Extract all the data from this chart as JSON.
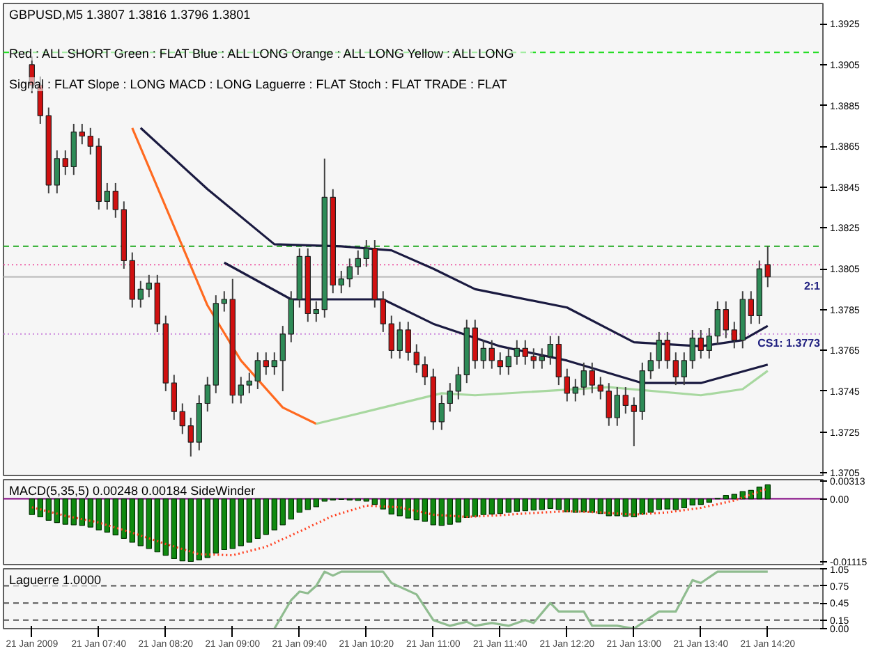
{
  "chart_data": [
    {
      "type": "candlestick",
      "title": "GBPUSD,M5 1.3807 1.3816 1.3796 1.3801",
      "annotations": [
        "Red : ALL SHORT  Green : FLAT  Blue : ALL LONG  Orange : ALL LONG  Yellow : ALL LONG",
        "Signal : FLAT  Slope : LONG  MACD : LONG  Laguerre : FLAT  Stoch : FLAT        TRADE : FLAT"
      ],
      "x": [
        "2009-01-21T07:00",
        "2009-01-21T07:05",
        "2009-01-21T07:10",
        "2009-01-21T07:15",
        "2009-01-21T07:20",
        "2009-01-21T07:25",
        "2009-01-21T07:30",
        "2009-01-21T07:35",
        "2009-01-21T07:40",
        "2009-01-21T07:45",
        "2009-01-21T07:50",
        "2009-01-21T07:55",
        "2009-01-21T08:00",
        "2009-01-21T08:05",
        "2009-01-21T08:10",
        "2009-01-21T08:15",
        "2009-01-21T08:20",
        "2009-01-21T08:25",
        "2009-01-21T08:30",
        "2009-01-21T08:35",
        "2009-01-21T08:40",
        "2009-01-21T08:45",
        "2009-01-21T08:50",
        "2009-01-21T08:55",
        "2009-01-21T09:00",
        "2009-01-21T09:05",
        "2009-01-21T09:10",
        "2009-01-21T09:15",
        "2009-01-21T09:20",
        "2009-01-21T09:25",
        "2009-01-21T09:30",
        "2009-01-21T09:35",
        "2009-01-21T09:40",
        "2009-01-21T09:45",
        "2009-01-21T09:50",
        "2009-01-21T09:55",
        "2009-01-21T10:00",
        "2009-01-21T10:05",
        "2009-01-21T10:10",
        "2009-01-21T10:15",
        "2009-01-21T10:20",
        "2009-01-21T10:25",
        "2009-01-21T10:30",
        "2009-01-21T10:35",
        "2009-01-21T10:40",
        "2009-01-21T10:45",
        "2009-01-21T10:50",
        "2009-01-21T10:55",
        "2009-01-21T11:00",
        "2009-01-21T11:05",
        "2009-01-21T11:10",
        "2009-01-21T11:15",
        "2009-01-21T11:20",
        "2009-01-21T11:25",
        "2009-01-21T11:30",
        "2009-01-21T11:35",
        "2009-01-21T11:40",
        "2009-01-21T11:45",
        "2009-01-21T11:50",
        "2009-01-21T11:55",
        "2009-01-21T12:00",
        "2009-01-21T12:05",
        "2009-01-21T12:10",
        "2009-01-21T12:15",
        "2009-01-21T12:20",
        "2009-01-21T12:25",
        "2009-01-21T12:30",
        "2009-01-21T12:35",
        "2009-01-21T12:40",
        "2009-01-21T12:45",
        "2009-01-21T12:50",
        "2009-01-21T12:55",
        "2009-01-21T13:00",
        "2009-01-21T13:05",
        "2009-01-21T13:10",
        "2009-01-21T13:15",
        "2009-01-21T13:20",
        "2009-01-21T13:25",
        "2009-01-21T13:30",
        "2009-01-21T13:35",
        "2009-01-21T13:40",
        "2009-01-21T13:45",
        "2009-01-21T13:50",
        "2009-01-21T13:55",
        "2009-01-21T14:00",
        "2009-01-21T14:05",
        "2009-01-21T14:10",
        "2009-01-21T14:15",
        "2009-01-21T14:20"
      ],
      "ohlc": [
        [
          1.3905,
          1.3909,
          1.3891,
          1.3895
        ],
        [
          1.3895,
          1.3899,
          1.3876,
          1.388
        ],
        [
          1.388,
          1.3884,
          1.3842,
          1.3846
        ],
        [
          1.3846,
          1.3863,
          1.3842,
          1.3859
        ],
        [
          1.3859,
          1.3863,
          1.3851,
          1.3855
        ],
        [
          1.3855,
          1.3876,
          1.3851,
          1.3872
        ],
        [
          1.3872,
          1.3876,
          1.3866,
          1.387
        ],
        [
          1.387,
          1.3874,
          1.3861,
          1.3865
        ],
        [
          1.3865,
          1.3869,
          1.3834,
          1.3838
        ],
        [
          1.3838,
          1.3847,
          1.3834,
          1.3843
        ],
        [
          1.3843,
          1.3847,
          1.383,
          1.3834
        ],
        [
          1.3834,
          1.3838,
          1.3805,
          1.3809
        ],
        [
          1.3809,
          1.3813,
          1.3786,
          1.379
        ],
        [
          1.379,
          1.3799,
          1.3786,
          1.3795
        ],
        [
          1.3795,
          1.3802,
          1.3791,
          1.3798
        ],
        [
          1.3798,
          1.3802,
          1.3774,
          1.3778
        ],
        [
          1.3778,
          1.3782,
          1.3745,
          1.3749
        ],
        [
          1.3749,
          1.3753,
          1.3731,
          1.3735
        ],
        [
          1.3735,
          1.3739,
          1.3724,
          1.3728
        ],
        [
          1.3728,
          1.3732,
          1.3713,
          1.372
        ],
        [
          1.372,
          1.3743,
          1.3716,
          1.3739
        ],
        [
          1.3739,
          1.3752,
          1.3735,
          1.3748
        ],
        [
          1.3748,
          1.3792,
          1.3744,
          1.3788
        ],
        [
          1.3788,
          1.3794,
          1.3784,
          1.379
        ],
        [
          1.379,
          1.38,
          1.3739,
          1.3743
        ],
        [
          1.3743,
          1.3752,
          1.3739,
          1.3748
        ],
        [
          1.3748,
          1.3754,
          1.3744,
          1.375
        ],
        [
          1.375,
          1.3764,
          1.3746,
          1.376
        ],
        [
          1.376,
          1.3764,
          1.3753,
          1.3757
        ],
        [
          1.3757,
          1.3764,
          1.3753,
          1.376
        ],
        [
          1.376,
          1.3777,
          1.3745,
          1.3773
        ],
        [
          1.3773,
          1.3794,
          1.3769,
          1.379
        ],
        [
          1.379,
          1.3815,
          1.3786,
          1.3811
        ],
        [
          1.3811,
          1.3815,
          1.3779,
          1.3783
        ],
        [
          1.3783,
          1.3789,
          1.3779,
          1.3785
        ],
        [
          1.3785,
          1.3859,
          1.3781,
          1.384
        ],
        [
          1.384,
          1.3844,
          1.3793,
          1.3797
        ],
        [
          1.3797,
          1.3804,
          1.3793,
          1.38
        ],
        [
          1.38,
          1.381,
          1.3796,
          1.3806
        ],
        [
          1.3806,
          1.3814,
          1.3802,
          1.381
        ],
        [
          1.381,
          1.3819,
          1.3806,
          1.3815
        ],
        [
          1.3815,
          1.3819,
          1.3786,
          1.379
        ],
        [
          1.379,
          1.3794,
          1.3774,
          1.3778
        ],
        [
          1.3778,
          1.3782,
          1.3761,
          1.3765
        ],
        [
          1.3765,
          1.3779,
          1.3761,
          1.3775
        ],
        [
          1.3775,
          1.3779,
          1.376,
          1.3764
        ],
        [
          1.3764,
          1.3768,
          1.3754,
          1.3758
        ],
        [
          1.3758,
          1.3762,
          1.3748,
          1.3752
        ],
        [
          1.3752,
          1.3756,
          1.3726,
          1.373
        ],
        [
          1.373,
          1.3743,
          1.3726,
          1.3739
        ],
        [
          1.3739,
          1.3749,
          1.3735,
          1.3745
        ],
        [
          1.3745,
          1.3757,
          1.3741,
          1.3753
        ],
        [
          1.3753,
          1.378,
          1.3749,
          1.3776
        ],
        [
          1.3776,
          1.378,
          1.3756,
          1.376
        ],
        [
          1.376,
          1.377,
          1.3756,
          1.3766
        ],
        [
          1.3766,
          1.377,
          1.3756,
          1.376
        ],
        [
          1.376,
          1.3764,
          1.3753,
          1.3757
        ],
        [
          1.3757,
          1.3766,
          1.3753,
          1.3762
        ],
        [
          1.3762,
          1.377,
          1.3758,
          1.3766
        ],
        [
          1.3766,
          1.377,
          1.3758,
          1.3762
        ],
        [
          1.3762,
          1.3766,
          1.3756,
          1.376
        ],
        [
          1.376,
          1.3766,
          1.3756,
          1.3762
        ],
        [
          1.3762,
          1.3772,
          1.3758,
          1.3768
        ],
        [
          1.3768,
          1.3772,
          1.3748,
          1.3752
        ],
        [
          1.3752,
          1.3756,
          1.374,
          1.3744
        ],
        [
          1.3744,
          1.3751,
          1.374,
          1.3747
        ],
        [
          1.3747,
          1.3759,
          1.3743,
          1.3755
        ],
        [
          1.3755,
          1.3759,
          1.3744,
          1.3748
        ],
        [
          1.3748,
          1.3752,
          1.3741,
          1.3745
        ],
        [
          1.3745,
          1.3749,
          1.3728,
          1.3732
        ],
        [
          1.3732,
          1.3747,
          1.3728,
          1.3743
        ],
        [
          1.3743,
          1.3747,
          1.3734,
          1.3738
        ],
        [
          1.3738,
          1.3742,
          1.3718,
          1.3735
        ],
        [
          1.3735,
          1.3759,
          1.3731,
          1.3755
        ],
        [
          1.3755,
          1.3764,
          1.3751,
          1.376
        ],
        [
          1.376,
          1.3774,
          1.3756,
          1.377
        ],
        [
          1.377,
          1.3774,
          1.3756,
          1.376
        ],
        [
          1.376,
          1.3764,
          1.3748,
          1.3752
        ],
        [
          1.3752,
          1.3764,
          1.3748,
          1.376
        ],
        [
          1.376,
          1.3775,
          1.3756,
          1.3771
        ],
        [
          1.3771,
          1.3775,
          1.3761,
          1.3765
        ],
        [
          1.3765,
          1.3776,
          1.3761,
          1.3772
        ],
        [
          1.3772,
          1.3789,
          1.3768,
          1.3785
        ],
        [
          1.3785,
          1.3789,
          1.3771,
          1.3775
        ],
        [
          1.3775,
          1.3779,
          1.3766,
          1.377
        ],
        [
          1.377,
          1.3794,
          1.3766,
          1.379
        ],
        [
          1.379,
          1.3794,
          1.3778,
          1.3782
        ],
        [
          1.3782,
          1.3809,
          1.3778,
          1.3805
        ],
        [
          1.3807,
          1.3816,
          1.3796,
          1.3801
        ]
      ],
      "series": [
        {
          "type": "line",
          "color": "#1a1a40",
          "x": [
            "2009-01-21T08:05",
            "2009-01-21T08:45",
            "2009-01-21T09:25",
            "2009-01-21T10:05",
            "2009-01-21T10:35",
            "2009-01-21T11:00",
            "2009-01-21T11:25",
            "2009-01-21T12:20",
            "2009-01-21T13:00",
            "2009-01-21T13:40",
            "2009-01-21T14:05",
            "2009-01-21T14:20"
          ],
          "values": [
            1.3874,
            1.3844,
            1.3817,
            1.3816,
            1.3814,
            1.3805,
            1.3795,
            1.3786,
            1.3769,
            1.3767,
            1.377,
            1.3777
          ]
        },
        {
          "type": "line",
          "color": "#1a1a40",
          "x": [
            "2009-01-21T08:55",
            "2009-01-21T09:35",
            "2009-01-21T10:30",
            "2009-01-21T11:00",
            "2009-01-21T11:40",
            "2009-01-21T12:20",
            "2009-01-21T13:05",
            "2009-01-21T13:40",
            "2009-01-21T14:20"
          ],
          "values": [
            1.3808,
            1.379,
            1.379,
            1.3778,
            1.3767,
            1.376,
            1.3749,
            1.3749,
            1.3758
          ]
        },
        {
          "type": "line",
          "color": "#ff6a20",
          "x": [
            "2009-01-21T08:00",
            "2009-01-21T08:45",
            "2009-01-21T09:05",
            "2009-01-21T09:30",
            "2009-01-21T09:50"
          ],
          "values": [
            1.3874,
            1.3787,
            1.376,
            1.3737,
            1.3729
          ]
        },
        {
          "type": "line",
          "color": "#a8d8a0",
          "x": [
            "2009-01-21T09:50",
            "2009-01-21T10:30",
            "2009-01-21T11:05",
            "2009-01-21T11:25",
            "2009-01-21T12:45",
            "2009-01-21T13:40",
            "2009-01-21T14:05",
            "2009-01-21T14:20"
          ],
          "values": [
            1.3729,
            1.3737,
            1.3744,
            1.3743,
            1.3747,
            1.3743,
            1.3746,
            1.3755
          ]
        }
      ],
      "ref_lines": [
        {
          "axis": "y",
          "value": 1.3911,
          "color": "#22dd22",
          "line_style": "dashed"
        },
        {
          "axis": "y",
          "value": 1.3816,
          "color": "#22aa22",
          "line_style": "dashed"
        },
        {
          "axis": "y",
          "value": 1.3807,
          "color": "#ee66aa",
          "line_style": "dotted"
        },
        {
          "axis": "y",
          "value": 1.3801,
          "color": "#bbbbbb",
          "line_style": "solid",
          "label": "2:1"
        },
        {
          "axis": "y",
          "value": 1.3773,
          "color": "#cc88dd",
          "line_style": "dotted",
          "label": "CS1: 1.3773"
        }
      ],
      "xlim": [
        "2009-01-21T06:43",
        "2009-01-21T14:53"
      ],
      "ylim": [
        1.3703,
        1.3935
      ],
      "yticks": [
        1.3705,
        1.3725,
        1.3745,
        1.3765,
        1.3785,
        1.3805,
        1.3825,
        1.3845,
        1.3865,
        1.3885,
        1.3905,
        1.3925
      ],
      "tick_labels": "y"
    },
    {
      "type": "bar",
      "title": "MACD(5,35,5) 0.00248 0.00184  SideWinder",
      "x": [
        "2009-01-21T07:00",
        "2009-01-21T07:05",
        "2009-01-21T07:10",
        "2009-01-21T07:15",
        "2009-01-21T07:20",
        "2009-01-21T07:25",
        "2009-01-21T07:30",
        "2009-01-21T07:35",
        "2009-01-21T07:40",
        "2009-01-21T07:45",
        "2009-01-21T07:50",
        "2009-01-21T07:55",
        "2009-01-21T08:00",
        "2009-01-21T08:05",
        "2009-01-21T08:10",
        "2009-01-21T08:15",
        "2009-01-21T08:20",
        "2009-01-21T08:25",
        "2009-01-21T08:30",
        "2009-01-21T08:35",
        "2009-01-21T08:40",
        "2009-01-21T08:45",
        "2009-01-21T08:50",
        "2009-01-21T08:55",
        "2009-01-21T09:00",
        "2009-01-21T09:05",
        "2009-01-21T09:10",
        "2009-01-21T09:15",
        "2009-01-21T09:20",
        "2009-01-21T09:25",
        "2009-01-21T09:30",
        "2009-01-21T09:35",
        "2009-01-21T09:40",
        "2009-01-21T09:45",
        "2009-01-21T09:50",
        "2009-01-21T09:55",
        "2009-01-21T10:00",
        "2009-01-21T10:05",
        "2009-01-21T10:10",
        "2009-01-21T10:15",
        "2009-01-21T10:20",
        "2009-01-21T10:25",
        "2009-01-21T10:30",
        "2009-01-21T10:35",
        "2009-01-21T10:40",
        "2009-01-21T10:45",
        "2009-01-21T10:50",
        "2009-01-21T10:55",
        "2009-01-21T11:00",
        "2009-01-21T11:05",
        "2009-01-21T11:10",
        "2009-01-21T11:15",
        "2009-01-21T11:20",
        "2009-01-21T11:25",
        "2009-01-21T11:30",
        "2009-01-21T11:35",
        "2009-01-21T11:40",
        "2009-01-21T11:45",
        "2009-01-21T11:50",
        "2009-01-21T11:55",
        "2009-01-21T12:00",
        "2009-01-21T12:05",
        "2009-01-21T12:10",
        "2009-01-21T12:15",
        "2009-01-21T12:20",
        "2009-01-21T12:25",
        "2009-01-21T12:30",
        "2009-01-21T12:35",
        "2009-01-21T12:40",
        "2009-01-21T12:45",
        "2009-01-21T12:50",
        "2009-01-21T12:55",
        "2009-01-21T13:00",
        "2009-01-21T13:05",
        "2009-01-21T13:10",
        "2009-01-21T13:15",
        "2009-01-21T13:20",
        "2009-01-21T13:25",
        "2009-01-21T13:30",
        "2009-01-21T13:35",
        "2009-01-21T13:40",
        "2009-01-21T13:45",
        "2009-01-21T13:50",
        "2009-01-21T13:55",
        "2009-01-21T14:00",
        "2009-01-21T14:05",
        "2009-01-21T14:10",
        "2009-01-21T14:15",
        "2009-01-21T14:20"
      ],
      "series": [
        {
          "type": "bar",
          "color": "#108a10",
          "values": [
            -0.0028,
            -0.0032,
            -0.0038,
            -0.0042,
            -0.0045,
            -0.0046,
            -0.0047,
            -0.005,
            -0.0055,
            -0.0059,
            -0.0064,
            -0.007,
            -0.0077,
            -0.0083,
            -0.0088,
            -0.0094,
            -0.01,
            -0.0106,
            -0.011,
            -0.0111,
            -0.0108,
            -0.0104,
            -0.0096,
            -0.009,
            -0.0088,
            -0.0083,
            -0.0077,
            -0.007,
            -0.0063,
            -0.0055,
            -0.0046,
            -0.0036,
            -0.0024,
            -0.0019,
            -0.0014,
            -0.0004,
            -0.0002,
            -0.0001,
            -0.0002,
            -0.0003,
            -0.0004,
            -0.001,
            -0.0018,
            -0.0027,
            -0.003,
            -0.0034,
            -0.0037,
            -0.004,
            -0.0046,
            -0.0047,
            -0.0045,
            -0.0041,
            -0.0033,
            -0.0031,
            -0.0028,
            -0.0027,
            -0.0026,
            -0.0024,
            -0.0022,
            -0.0021,
            -0.002,
            -0.0019,
            -0.0017,
            -0.0019,
            -0.0023,
            -0.0024,
            -0.0023,
            -0.0024,
            -0.0026,
            -0.003,
            -0.003,
            -0.0031,
            -0.0032,
            -0.0027,
            -0.0024,
            -0.0019,
            -0.0018,
            -0.0019,
            -0.0016,
            -0.0011,
            -0.001,
            -0.0006,
            0.0001,
            0.0006,
            0.0008,
            0.0013,
            0.0015,
            0.0021,
            0.00248
          ]
        },
        {
          "type": "line",
          "color": "#ff4020",
          "line_style": "dotted",
          "x": [
            "2009-01-21T07:00",
            "2009-01-21T07:20",
            "2009-01-21T07:40",
            "2009-01-21T08:00",
            "2009-01-21T08:20",
            "2009-01-21T08:40",
            "2009-01-21T09:00",
            "2009-01-21T09:20",
            "2009-01-21T09:40",
            "2009-01-21T10:00",
            "2009-01-21T10:20",
            "2009-01-21T10:40",
            "2009-01-21T11:00",
            "2009-01-21T11:20",
            "2009-01-21T11:40",
            "2009-01-21T12:00",
            "2009-01-21T12:20",
            "2009-01-21T12:40",
            "2009-01-21T13:00",
            "2009-01-21T13:20",
            "2009-01-21T13:40",
            "2009-01-21T14:00",
            "2009-01-21T14:20"
          ],
          "values": [
            -0.0015,
            -0.003,
            -0.0042,
            -0.006,
            -0.008,
            -0.0098,
            -0.01,
            -0.0085,
            -0.0058,
            -0.003,
            -0.0012,
            -0.0015,
            -0.0028,
            -0.0032,
            -0.0029,
            -0.0025,
            -0.0022,
            -0.0024,
            -0.0028,
            -0.0024,
            -0.0016,
            -0.0003,
            0.00184
          ]
        }
      ],
      "ref_lines": [
        {
          "axis": "y",
          "value": 0,
          "color": "#800080",
          "line_style": "solid"
        }
      ],
      "xlim": [
        "2009-01-21T06:43",
        "2009-01-21T14:53"
      ],
      "ylim": [
        -0.0119,
        0.0034
      ],
      "yticks": [
        0.00313,
        {
          "value": 0,
          "label": "0.00"
        },
        -0.01115
      ],
      "tick_labels": "y"
    },
    {
      "type": "line",
      "title": "Laguerre 1.0000",
      "series": [
        {
          "color": "#8fbc8f",
          "x": [
            "2009-01-21T09:25",
            "2009-01-21T09:35",
            "2009-01-21T09:40",
            "2009-01-21T09:45",
            "2009-01-21T09:50",
            "2009-01-21T09:55",
            "2009-01-21T10:00",
            "2009-01-21T10:05",
            "2009-01-21T10:30",
            "2009-01-21T10:35",
            "2009-01-21T10:50",
            "2009-01-21T11:00",
            "2009-01-21T11:10",
            "2009-01-21T11:20",
            "2009-01-21T11:25",
            "2009-01-21T11:35",
            "2009-01-21T11:45",
            "2009-01-21T11:55",
            "2009-01-21T12:00",
            "2009-01-21T12:10",
            "2009-01-21T12:15",
            "2009-01-21T12:30",
            "2009-01-21T12:35",
            "2009-01-21T12:50",
            "2009-01-21T13:00",
            "2009-01-21T13:15",
            "2009-01-21T13:25",
            "2009-01-21T13:35",
            "2009-01-21T13:40",
            "2009-01-21T13:50",
            "2009-01-21T14:20"
          ],
          "values": [
            0.0,
            0.5,
            0.65,
            0.62,
            0.75,
            1.0,
            0.93,
            1.0,
            1.0,
            0.8,
            0.6,
            0.15,
            0.05,
            0.12,
            0.05,
            0.1,
            0.05,
            0.15,
            0.1,
            0.45,
            0.3,
            0.3,
            0.05,
            0.05,
            0.0,
            0.3,
            0.3,
            0.85,
            0.8,
            1.0,
            1.0
          ]
        }
      ],
      "ref_lines": [
        {
          "axis": "y",
          "value": 0.75,
          "color": "#555555",
          "line_style": "dashed"
        },
        {
          "axis": "y",
          "value": 0.45,
          "color": "#555555",
          "line_style": "dashed"
        },
        {
          "axis": "y",
          "value": 0.15,
          "color": "#555555",
          "line_style": "dashed"
        }
      ],
      "xlim": [
        "2009-01-21T06:43",
        "2009-01-21T14:53"
      ],
      "xticks": [
        {
          "value": "2009-01-21T07:00",
          "label": "21 Jan 2009"
        },
        {
          "value": "2009-01-21T07:40",
          "label": "21 Jan 07:40"
        },
        {
          "value": "2009-01-21T08:20",
          "label": "21 Jan 08:20"
        },
        {
          "value": "2009-01-21T09:00",
          "label": "21 Jan 09:00"
        },
        {
          "value": "2009-01-21T09:40",
          "label": "21 Jan 09:40"
        },
        {
          "value": "2009-01-21T10:20",
          "label": "21 Jan 10:20"
        },
        {
          "value": "2009-01-21T11:00",
          "label": "21 Jan 11:00"
        },
        {
          "value": "2009-01-21T11:40",
          "label": "21 Jan 11:40"
        },
        {
          "value": "2009-01-21T12:20",
          "label": "21 Jan 12:20"
        },
        {
          "value": "2009-01-21T13:00",
          "label": "21 Jan 13:00"
        },
        {
          "value": "2009-01-21T13:40",
          "label": "21 Jan 13:40"
        },
        {
          "value": "2009-01-21T14:20",
          "label": "21 Jan 14:20"
        }
      ],
      "ylim": [
        0,
        1.05
      ],
      "yticks": [
        1.05,
        0.75,
        0.45,
        0.15,
        {
          "value": 0,
          "label": "0.00"
        }
      ]
    }
  ]
}
